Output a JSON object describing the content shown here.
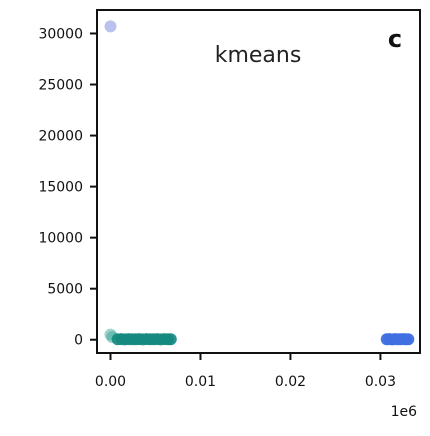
{
  "chart_data": {
    "type": "scatter",
    "title": "kmeans",
    "panel_label": "c",
    "x_offset_label": "1e6",
    "xlim": [
      -0.0015,
      0.0344
    ],
    "ylim": [
      -1300,
      32300
    ],
    "x_ticks": [
      0.0,
      0.01,
      0.02,
      0.03
    ],
    "x_tick_labels": [
      "0.00",
      "0.01",
      "0.02",
      "0.03"
    ],
    "y_ticks": [
      0,
      5000,
      10000,
      15000,
      20000,
      25000,
      30000
    ],
    "y_tick_labels": [
      "0",
      "5000",
      "10000",
      "15000",
      "20000",
      "25000",
      "30000"
    ],
    "grid": false,
    "series": [
      {
        "color": "#7f8fe0",
        "opacity": 0.55,
        "points": [
          [
            0.0,
            30700
          ]
        ]
      },
      {
        "color": "#2a9d8f",
        "opacity": 0.45,
        "points": [
          [
            0.0,
            500
          ],
          [
            0.0002,
            250
          ]
        ]
      },
      {
        "color": "#14887e",
        "opacity": 0.9,
        "points": [
          [
            0.0008,
            50
          ],
          [
            0.0012,
            60
          ],
          [
            0.0016,
            40
          ],
          [
            0.002,
            55
          ],
          [
            0.0024,
            45
          ],
          [
            0.0028,
            50
          ],
          [
            0.0032,
            60
          ],
          [
            0.0036,
            40
          ],
          [
            0.004,
            55
          ],
          [
            0.0044,
            45
          ],
          [
            0.0048,
            50
          ],
          [
            0.0052,
            60
          ],
          [
            0.0056,
            40
          ],
          [
            0.006,
            55
          ],
          [
            0.0064,
            45
          ],
          [
            0.0067,
            50
          ]
        ]
      },
      {
        "color": "#3f6fe0",
        "opacity": 0.95,
        "points": [
          [
            0.0307,
            50
          ],
          [
            0.031,
            60
          ],
          [
            0.0313,
            40
          ],
          [
            0.0316,
            55
          ],
          [
            0.0319,
            45
          ],
          [
            0.0322,
            50
          ],
          [
            0.0325,
            60
          ],
          [
            0.0328,
            50
          ],
          [
            0.0331,
            45
          ]
        ]
      }
    ]
  }
}
